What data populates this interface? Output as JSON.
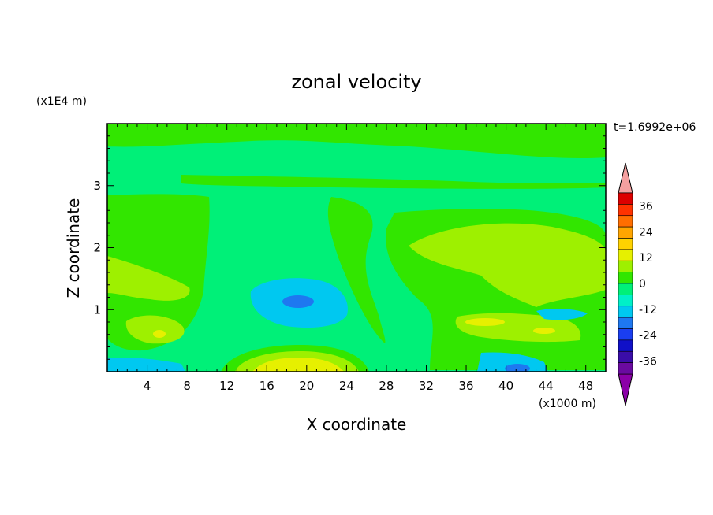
{
  "chart_data": {
    "type": "heatmap",
    "title": "zonal velocity",
    "xlabel": "X coordinate",
    "ylabel": "Z coordinate",
    "x_unit_label": "(x1000 m)",
    "y_unit_label": "(x1E4 m)",
    "time_label": "t=1.6992e+06",
    "xlim": [
      0,
      50
    ],
    "ylim": [
      0,
      4
    ],
    "x_ticks": [
      4,
      8,
      12,
      16,
      20,
      24,
      28,
      32,
      36,
      40,
      44,
      48
    ],
    "y_ticks": [
      1,
      2,
      3
    ],
    "colorbar": {
      "tick_labels": [
        "36",
        "24",
        "12",
        "0",
        "-12",
        "-24",
        "-36"
      ],
      "tick_values": [
        36,
        24,
        12,
        0,
        -12,
        -24,
        -36
      ],
      "levels": [
        -42,
        -36,
        -30,
        -24,
        -18,
        -12,
        -6,
        0,
        6,
        12,
        18,
        24,
        30,
        36,
        42
      ],
      "colors": [
        "#6a0aa0",
        "#3a0da8",
        "#1010c8",
        "#1a3ef0",
        "#1e78f0",
        "#00c8f0",
        "#00f0c8",
        "#00f078",
        "#32e600",
        "#9ef000",
        "#e6f000",
        "#ffd200",
        "#ffa500",
        "#ff6e00",
        "#ff3200",
        "#dc0000"
      ],
      "under_color": "#8b00a8",
      "over_color": "#f4a0a0"
    }
  }
}
